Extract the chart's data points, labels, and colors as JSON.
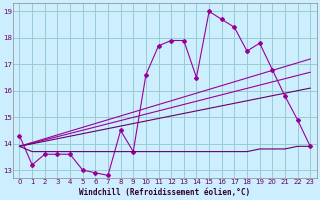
{
  "xlabel": "Windchill (Refroidissement éolien,°C)",
  "background_color": "#cceeff",
  "grid_color": "#99cccc",
  "line_color": "#990099",
  "line_color2": "#660066",
  "xlim": [
    -0.5,
    23.5
  ],
  "ylim": [
    12.7,
    19.3
  ],
  "yticks": [
    13,
    14,
    15,
    16,
    17,
    18,
    19
  ],
  "xticks": [
    0,
    1,
    2,
    3,
    4,
    5,
    6,
    7,
    8,
    9,
    10,
    11,
    12,
    13,
    14,
    15,
    16,
    17,
    18,
    19,
    20,
    21,
    22,
    23
  ],
  "series1_x": [
    0,
    1,
    2,
    3,
    4,
    5,
    6,
    7,
    8,
    9,
    10,
    11,
    12,
    13,
    14,
    15,
    16,
    17,
    18,
    19,
    20,
    21,
    22,
    23
  ],
  "series1_y": [
    14.3,
    13.2,
    13.6,
    13.6,
    13.6,
    13.0,
    12.9,
    12.8,
    14.5,
    13.7,
    16.6,
    17.7,
    17.9,
    17.9,
    16.5,
    19.0,
    18.7,
    18.4,
    17.5,
    17.8,
    16.8,
    15.8,
    14.9,
    13.9
  ],
  "series2_x": [
    0,
    1,
    2,
    3,
    4,
    5,
    6,
    7,
    8,
    9,
    10,
    11,
    12,
    13,
    14,
    15,
    16,
    17,
    18,
    19,
    20,
    21,
    22,
    23
  ],
  "series2_y": [
    13.9,
    13.7,
    13.7,
    13.7,
    13.7,
    13.7,
    13.7,
    13.7,
    13.7,
    13.7,
    13.7,
    13.7,
    13.7,
    13.7,
    13.7,
    13.7,
    13.7,
    13.7,
    13.7,
    13.8,
    13.8,
    13.8,
    13.9,
    13.9
  ],
  "series3_x": [
    0,
    23
  ],
  "series3_y": [
    13.9,
    17.2
  ],
  "series4_x": [
    0,
    23
  ],
  "series4_y": [
    13.9,
    16.7
  ],
  "series5_x": [
    0,
    23
  ],
  "series5_y": [
    13.9,
    16.1
  ]
}
